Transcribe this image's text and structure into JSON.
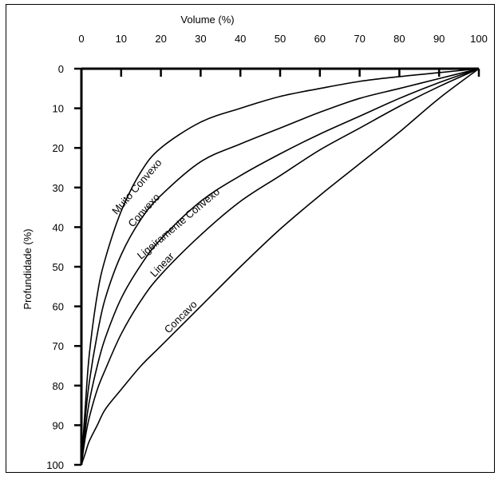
{
  "chart_data": {
    "type": "line",
    "title": "",
    "xlabel": "Volume (%)",
    "ylabel": "Profundidade (%)",
    "xlim": [
      0,
      100
    ],
    "ylim": [
      0,
      100
    ],
    "y_inverted": true,
    "x_axis_position": "top",
    "x_ticks": [
      0,
      10,
      20,
      30,
      40,
      50,
      60,
      70,
      80,
      90,
      100
    ],
    "y_ticks": [
      0,
      10,
      20,
      30,
      40,
      50,
      60,
      70,
      80,
      90,
      100
    ],
    "grid": false,
    "legend": "none",
    "line_color": "#000000",
    "series": [
      {
        "name": "Muito Convexo",
        "x": [
          0,
          1,
          2,
          4,
          6,
          10,
          15,
          20,
          30,
          40,
          50,
          60,
          70,
          80,
          90,
          100
        ],
        "y": [
          100,
          85,
          72,
          57,
          48,
          36,
          26,
          20,
          13.5,
          10,
          7,
          5,
          3.2,
          2,
          1,
          0
        ]
      },
      {
        "name": "Convexo",
        "x": [
          0,
          1,
          2,
          4,
          6,
          10,
          15,
          20,
          30,
          40,
          50,
          60,
          70,
          80,
          90,
          100
        ],
        "y": [
          100,
          88,
          79,
          67,
          58,
          47,
          38,
          32,
          23.5,
          19,
          15,
          11,
          7.5,
          5,
          2.5,
          0
        ]
      },
      {
        "name": "Ligeiramente Convexo",
        "x": [
          0,
          1,
          2,
          4,
          6,
          10,
          15,
          20,
          30,
          40,
          50,
          60,
          70,
          80,
          90,
          100
        ],
        "y": [
          100,
          91,
          84,
          75,
          68,
          58,
          49.5,
          43,
          33.5,
          27,
          21.5,
          16.5,
          12,
          7.5,
          3.5,
          0
        ]
      },
      {
        "name": "Linear",
        "x": [
          0,
          1,
          2,
          4,
          6,
          10,
          15,
          20,
          30,
          40,
          50,
          60,
          70,
          80,
          90,
          100
        ],
        "y": [
          100,
          93,
          88,
          81,
          76,
          67,
          58.5,
          52,
          42,
          33.5,
          27,
          20.5,
          15,
          9.5,
          4.5,
          0
        ]
      },
      {
        "name": "Concavo",
        "x": [
          0,
          1,
          2,
          4,
          6,
          10,
          15,
          20,
          30,
          40,
          50,
          60,
          70,
          80,
          90,
          100
        ],
        "y": [
          100,
          97,
          94,
          90,
          86,
          81,
          75,
          70,
          60,
          50,
          40.5,
          32,
          24,
          16,
          7.5,
          0
        ]
      }
    ]
  }
}
